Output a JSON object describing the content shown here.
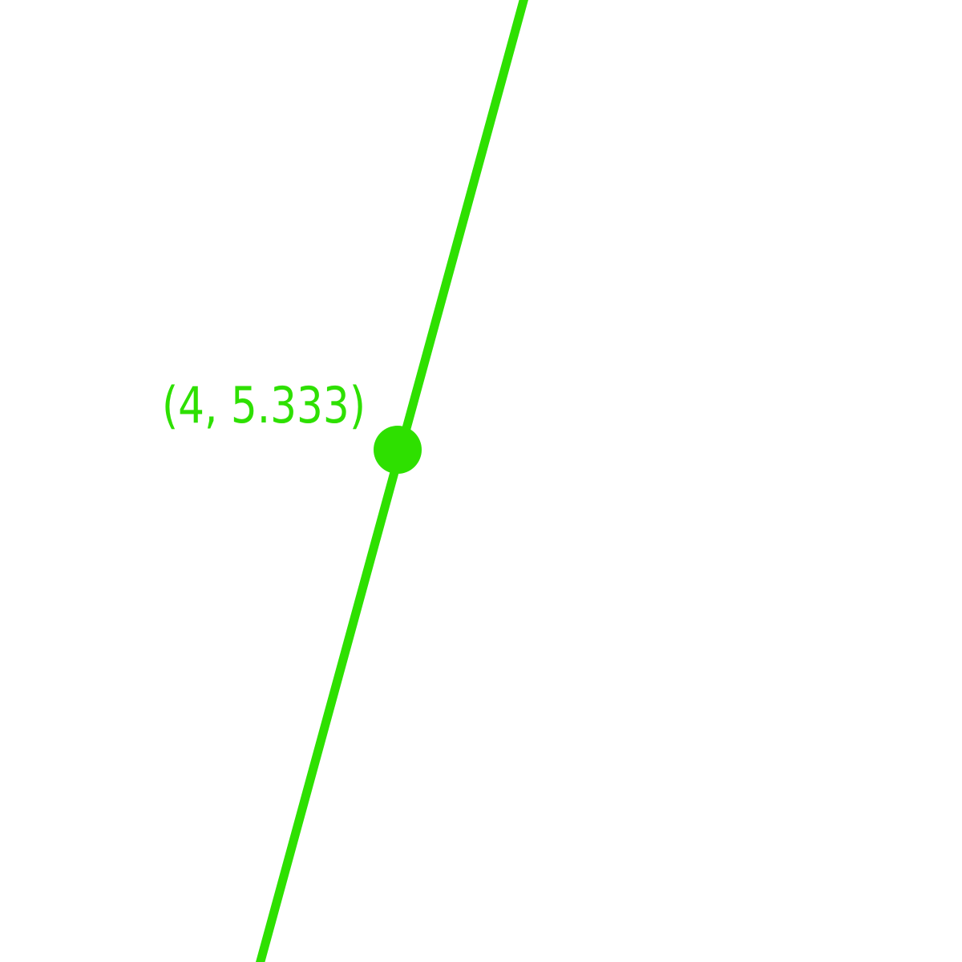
{
  "figure": {
    "line_color": "#2ee000",
    "background_color": "#ffffff",
    "point": {
      "x": 4,
      "y": 5.333,
      "label": "(4, 5.333)"
    }
  }
}
